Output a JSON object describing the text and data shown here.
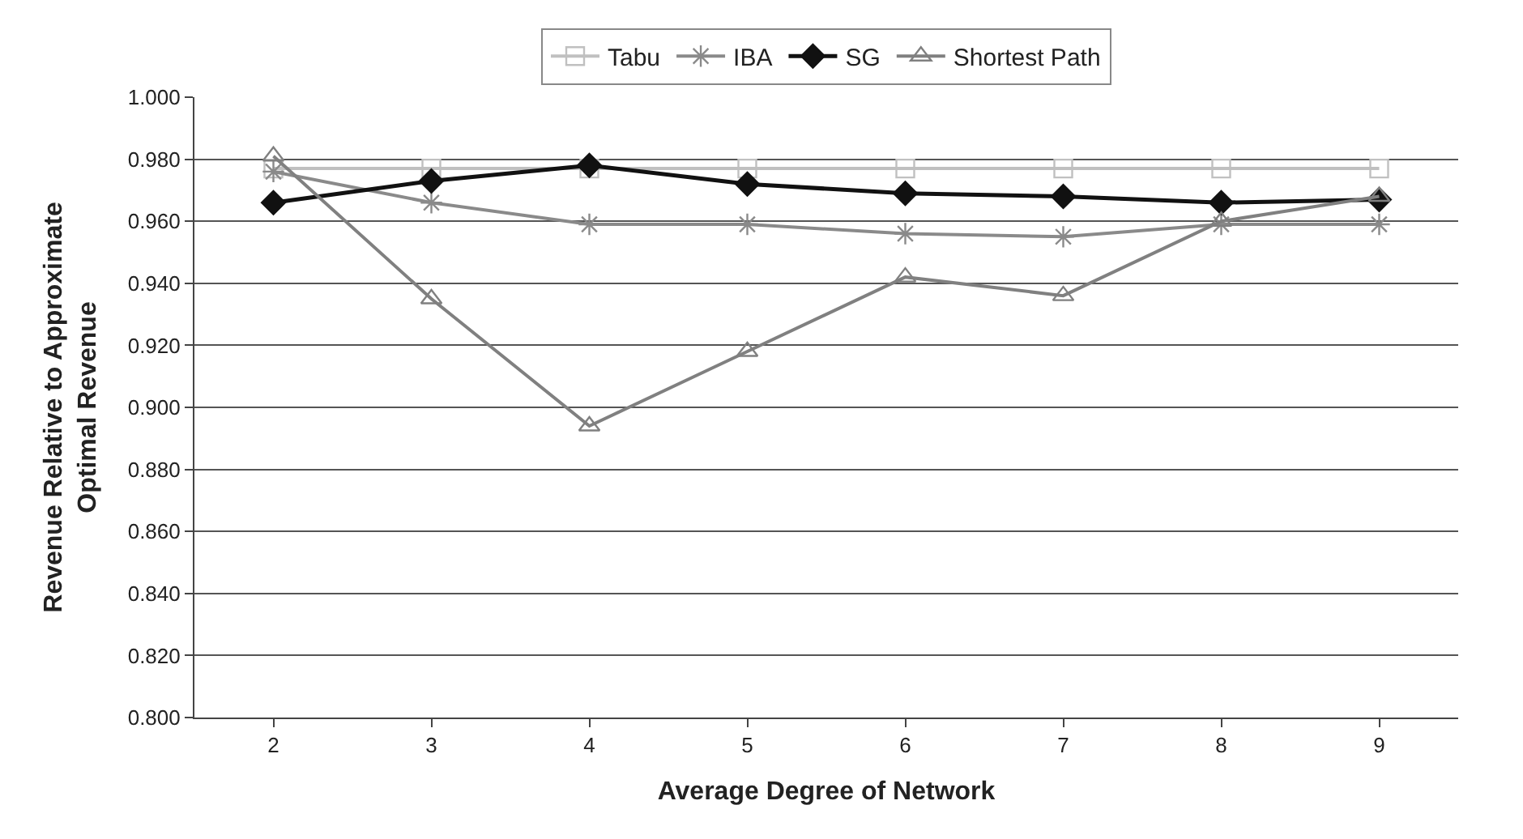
{
  "chart_data": {
    "type": "line",
    "xlabel": "Average Degree of Network",
    "ylabel": "Revenue Relative to Approximate\nOptimal Revenue",
    "categories": [
      "2",
      "3",
      "4",
      "5",
      "6",
      "7",
      "8",
      "9"
    ],
    "ylim": [
      0.8,
      1.0
    ],
    "yticks": [
      {
        "value": 0.8,
        "label": "0.800"
      },
      {
        "value": 0.82,
        "label": "0.820"
      },
      {
        "value": 0.84,
        "label": "0.840"
      },
      {
        "value": 0.86,
        "label": "0.860"
      },
      {
        "value": 0.88,
        "label": "0.880"
      },
      {
        "value": 0.9,
        "label": "0.900"
      },
      {
        "value": 0.92,
        "label": "0.920"
      },
      {
        "value": 0.94,
        "label": "0.940"
      },
      {
        "value": 0.96,
        "label": "0.960"
      },
      {
        "value": 0.98,
        "label": "0.980"
      },
      {
        "value": 1.0,
        "label": "1.000"
      }
    ],
    "grid": "y",
    "legend": "top",
    "line_style": "solid",
    "series": [
      {
        "name": "Tabu",
        "color": "#c0c0c0",
        "marker": "square",
        "values": [
          0.977,
          0.977,
          0.977,
          0.977,
          0.977,
          0.977,
          0.977,
          0.977
        ]
      },
      {
        "name": "IBA",
        "color": "#8a8a8a",
        "marker": "cross",
        "values": [
          0.976,
          0.966,
          0.959,
          0.959,
          0.956,
          0.955,
          0.959,
          0.959
        ]
      },
      {
        "name": "SG",
        "color": "#111111",
        "marker": "diamond",
        "values": [
          0.966,
          0.973,
          0.978,
          0.972,
          0.969,
          0.968,
          0.966,
          0.967
        ]
      },
      {
        "name": "Shortest Path",
        "color": "#808080",
        "marker": "triangle",
        "values": [
          0.981,
          0.935,
          0.894,
          0.918,
          0.942,
          0.936,
          0.96,
          0.968
        ]
      }
    ]
  }
}
